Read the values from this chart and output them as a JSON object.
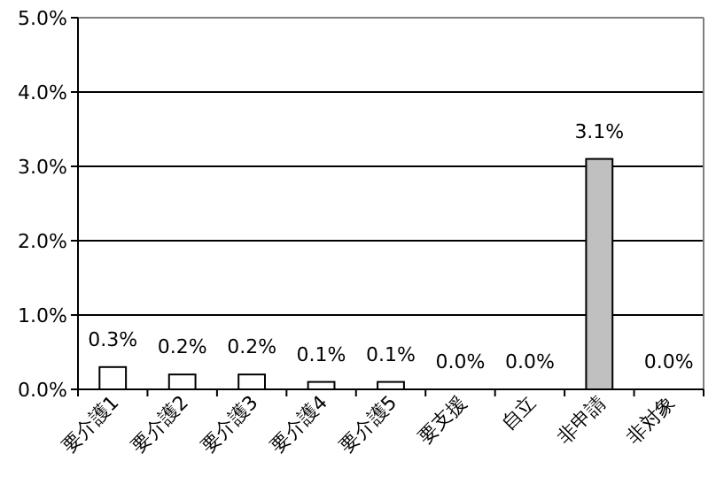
{
  "chart_data": {
    "type": "bar",
    "categories": [
      "要介護1",
      "要介護2",
      "要介護3",
      "要介護4",
      "要介護5",
      "要支援",
      "自立",
      "非申請",
      "非対象"
    ],
    "values": [
      0.3,
      0.2,
      0.2,
      0.1,
      0.1,
      0.0,
      0.0,
      3.1,
      0.0
    ],
    "colors": [
      "#ffffff",
      "#ffffff",
      "#ffffff",
      "#ffffff",
      "#ffffff",
      "#ffffff",
      "#ffffff",
      "#c0c0c0",
      "#ffffff"
    ],
    "value_labels": [
      "0.3%",
      "0.2%",
      "0.2%",
      "0.1%",
      "0.1%",
      "0.0%",
      "0.0%",
      "3.1%",
      "0.0%"
    ],
    "ylim": [
      0,
      5
    ],
    "yticks": [
      {
        "value": 0,
        "label": "0.0%"
      },
      {
        "value": 1,
        "label": "1.0%"
      },
      {
        "value": 2,
        "label": "2.0%"
      },
      {
        "value": 3,
        "label": "3.0%"
      },
      {
        "value": 4,
        "label": "4.0%"
      },
      {
        "value": 5,
        "label": "5.0%"
      }
    ],
    "grid": "y"
  }
}
